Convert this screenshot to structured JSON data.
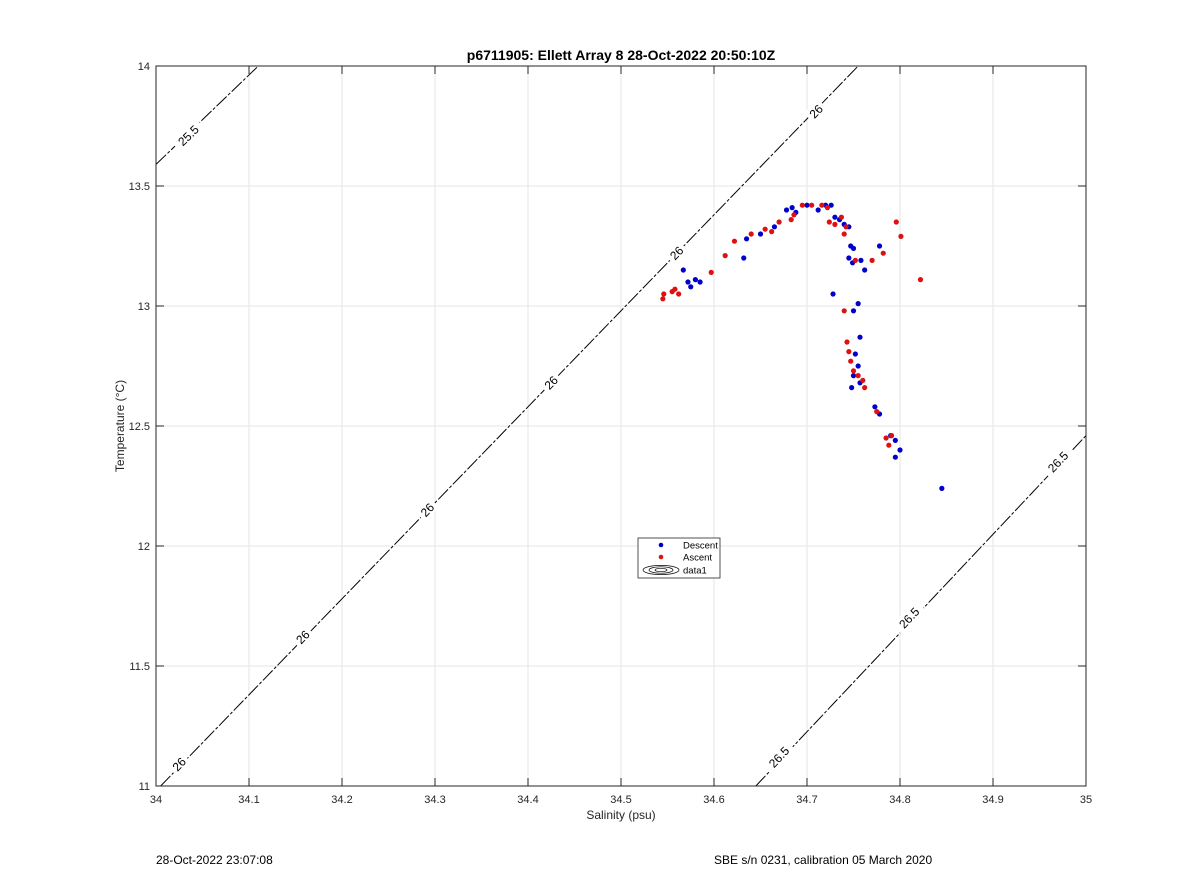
{
  "chart_data": {
    "type": "scatter",
    "title": "p6711905: Ellett Array 8 28-Oct-2022 20:50:10Z",
    "xlabel": "Salinity (psu)",
    "ylabel": "Temperature (°C)",
    "xlim": [
      34,
      35
    ],
    "ylim": [
      11,
      14
    ],
    "xticks": [
      34,
      34.1,
      34.2,
      34.3,
      34.4,
      34.5,
      34.6,
      34.7,
      34.8,
      34.9,
      35
    ],
    "xtick_labels": [
      "34",
      "34.1",
      "34.2",
      "34.3",
      "34.4",
      "34.5",
      "34.6",
      "34.7",
      "34.8",
      "34.9",
      "35"
    ],
    "yticks": [
      11,
      11.5,
      12,
      12.5,
      13,
      13.5,
      14
    ],
    "ytick_labels": [
      "11",
      "11.5",
      "12",
      "12.5",
      "13",
      "13.5",
      "14"
    ],
    "grid": true,
    "legend": {
      "placement": "center",
      "entries": [
        "Descent",
        "Ascent",
        "data1"
      ]
    },
    "series": [
      {
        "name": "Descent",
        "color": "#0000cc",
        "points": [
          [
            34.567,
            13.15
          ],
          [
            34.572,
            13.1
          ],
          [
            34.575,
            13.08
          ],
          [
            34.58,
            13.11
          ],
          [
            34.585,
            13.1
          ],
          [
            34.632,
            13.2
          ],
          [
            34.635,
            13.28
          ],
          [
            34.65,
            13.3
          ],
          [
            34.665,
            13.33
          ],
          [
            34.678,
            13.4
          ],
          [
            34.684,
            13.41
          ],
          [
            34.688,
            13.39
          ],
          [
            34.7,
            13.42
          ],
          [
            34.712,
            13.4
          ],
          [
            34.72,
            13.42
          ],
          [
            34.726,
            13.42
          ],
          [
            34.73,
            13.37
          ],
          [
            34.735,
            13.36
          ],
          [
            34.74,
            13.34
          ],
          [
            34.745,
            13.33
          ],
          [
            34.747,
            13.25
          ],
          [
            34.75,
            13.24
          ],
          [
            34.745,
            13.2
          ],
          [
            34.749,
            13.18
          ],
          [
            34.758,
            13.19
          ],
          [
            34.762,
            13.15
          ],
          [
            34.778,
            13.25
          ],
          [
            34.728,
            13.05
          ],
          [
            34.755,
            13.01
          ],
          [
            34.75,
            12.98
          ],
          [
            34.757,
            12.87
          ],
          [
            34.752,
            12.8
          ],
          [
            34.755,
            12.75
          ],
          [
            34.75,
            12.71
          ],
          [
            34.757,
            12.68
          ],
          [
            34.748,
            12.66
          ],
          [
            34.773,
            12.58
          ],
          [
            34.778,
            12.55
          ],
          [
            34.79,
            12.46
          ],
          [
            34.795,
            12.44
          ],
          [
            34.795,
            12.37
          ],
          [
            34.8,
            12.4
          ],
          [
            34.845,
            12.24
          ]
        ]
      },
      {
        "name": "Ascent",
        "color": "#dd1111",
        "points": [
          [
            34.545,
            13.03
          ],
          [
            34.546,
            13.05
          ],
          [
            34.555,
            13.06
          ],
          [
            34.558,
            13.07
          ],
          [
            34.562,
            13.05
          ],
          [
            34.597,
            13.14
          ],
          [
            34.612,
            13.21
          ],
          [
            34.622,
            13.27
          ],
          [
            34.64,
            13.3
          ],
          [
            34.655,
            13.32
          ],
          [
            34.662,
            13.31
          ],
          [
            34.67,
            13.35
          ],
          [
            34.683,
            13.36
          ],
          [
            34.686,
            13.38
          ],
          [
            34.695,
            13.42
          ],
          [
            34.705,
            13.42
          ],
          [
            34.716,
            13.42
          ],
          [
            34.722,
            13.41
          ],
          [
            34.724,
            13.35
          ],
          [
            34.73,
            13.34
          ],
          [
            34.737,
            13.37
          ],
          [
            34.74,
            13.3
          ],
          [
            34.742,
            13.33
          ],
          [
            34.752,
            13.19
          ],
          [
            34.77,
            13.19
          ],
          [
            34.782,
            13.22
          ],
          [
            34.796,
            13.35
          ],
          [
            34.801,
            13.29
          ],
          [
            34.822,
            13.11
          ],
          [
            34.74,
            12.98
          ],
          [
            34.743,
            12.85
          ],
          [
            34.745,
            12.81
          ],
          [
            34.747,
            12.77
          ],
          [
            34.75,
            12.73
          ],
          [
            34.755,
            12.71
          ],
          [
            34.76,
            12.69
          ],
          [
            34.762,
            12.66
          ],
          [
            34.775,
            12.56
          ],
          [
            34.785,
            12.45
          ],
          [
            34.788,
            12.42
          ],
          [
            34.791,
            12.46
          ]
        ]
      }
    ],
    "contours": [
      {
        "label": "25.5",
        "line": [
          [
            34.0,
            13.59
          ],
          [
            34.11,
            14.0
          ]
        ],
        "label_positions": [
          [
            34.035,
            13.71
          ]
        ]
      },
      {
        "label": "26",
        "line": [
          [
            34.005,
            11.0
          ],
          [
            34.755,
            14.0
          ]
        ],
        "label_positions": [
          [
            34.025,
            11.09
          ],
          [
            34.158,
            11.62
          ],
          [
            34.292,
            12.15
          ],
          [
            34.425,
            12.68
          ],
          [
            34.56,
            13.22
          ],
          [
            34.71,
            13.81
          ]
        ]
      },
      {
        "label": "26.5",
        "line": [
          [
            34.645,
            11.0
          ],
          [
            35.0,
            12.46
          ]
        ],
        "label_positions": [
          [
            34.67,
            11.12
          ],
          [
            34.81,
            11.7
          ],
          [
            34.97,
            12.35
          ]
        ]
      }
    ]
  },
  "footer": {
    "timestamp": "28-Oct-2022 23:07:08",
    "calibration": "SBE s/n 0231, calibration 05 March 2020"
  }
}
